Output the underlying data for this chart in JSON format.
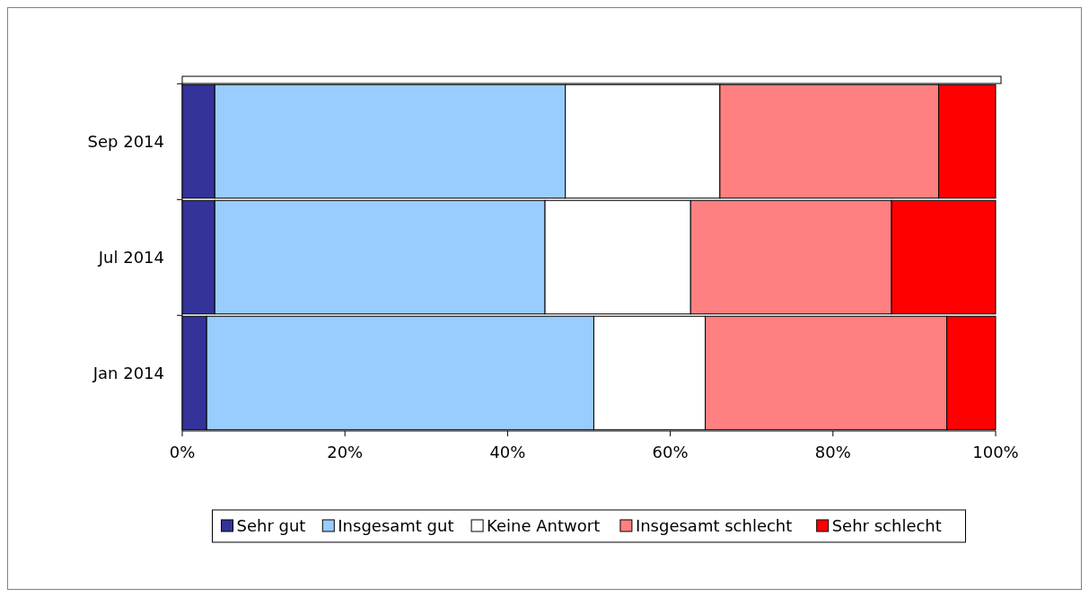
{
  "chart_data": {
    "type": "bar",
    "orientation": "horizontal",
    "stacked": true,
    "categories": [
      "Sep 2014",
      "Jul 2014",
      "Jan 2014"
    ],
    "series": [
      {
        "name": "Sehr gut",
        "color": "#333399",
        "values": [
          4.0,
          4.0,
          3.0
        ]
      },
      {
        "name": "Insgesamt gut",
        "color": "#99ccff",
        "values": [
          43.1,
          40.6,
          47.6
        ]
      },
      {
        "name": "Keine Antwort",
        "color": "#ffffff",
        "values": [
          19.0,
          17.9,
          13.7
        ]
      },
      {
        "name": "Insgesamt schlecht",
        "color": "#ff8080",
        "values": [
          26.9,
          24.7,
          29.7
        ]
      },
      {
        "name": "Sehr schlecht",
        "color": "#ff0000",
        "values": [
          7.0,
          12.8,
          6.0
        ]
      }
    ],
    "xlim": [
      0,
      100
    ],
    "xticks": [
      {
        "value": 0,
        "label": "0%"
      },
      {
        "value": 20,
        "label": "20%"
      },
      {
        "value": 40,
        "label": "40%"
      },
      {
        "value": 60,
        "label": "60%"
      },
      {
        "value": 80,
        "label": "80%"
      },
      {
        "value": 100,
        "label": "100%"
      }
    ],
    "legend": "bottom"
  }
}
